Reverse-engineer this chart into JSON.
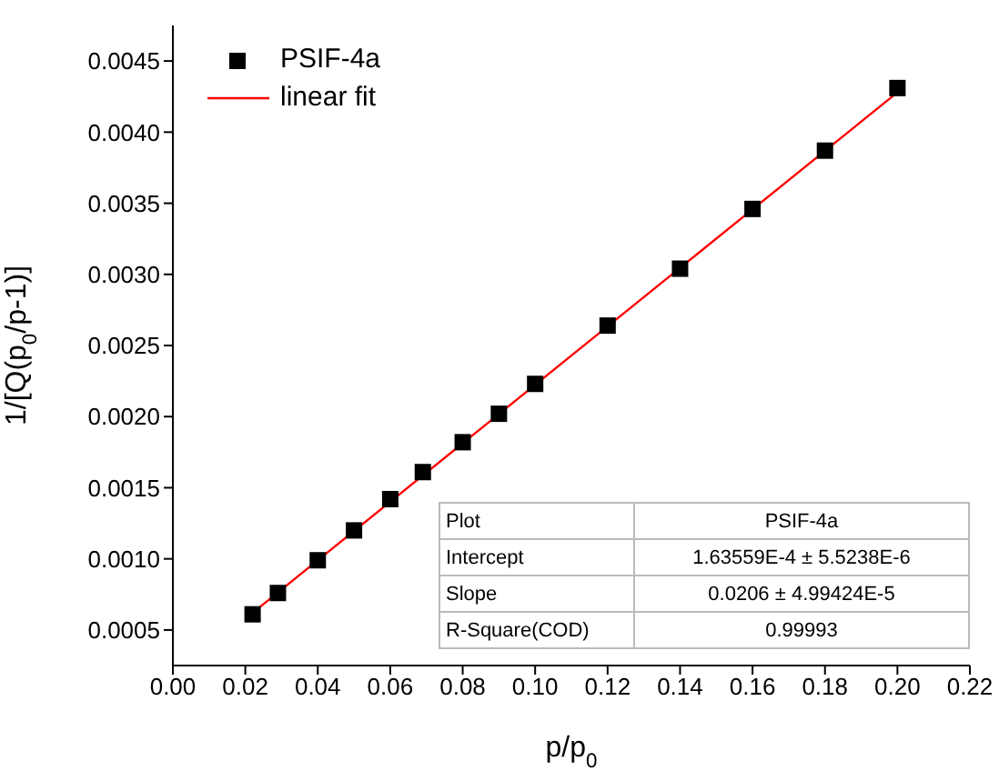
{
  "chart_data": {
    "type": "scatter",
    "xlabel": "p/p$_{0}$",
    "ylabel": "1/[Q(p$_{0}$/p-1)]",
    "xlim": [
      0,
      0.22
    ],
    "xticks": [
      {
        "value": 0,
        "label": "0.00"
      },
      0.02,
      0.04,
      0.06,
      0.08,
      {
        "value": 0.1,
        "label": "0.10"
      },
      0.12,
      0.14,
      0.16,
      0.18,
      {
        "value": 0.2,
        "label": "0.20"
      },
      0.22
    ],
    "ylim": [
      0.00025,
      0.00475
    ],
    "yticks": [
      0.0005,
      {
        "value": 0.001,
        "label": "0.0010"
      },
      0.0015,
      {
        "value": 0.002,
        "label": "0.0020"
      },
      0.0025,
      {
        "value": 0.003,
        "label": "0.0030"
      },
      0.0035,
      {
        "value": 0.004,
        "label": "0.0040"
      },
      0.0045
    ],
    "series": [
      {
        "name": "PSIF-4a",
        "color": "#000000",
        "marker": "square",
        "x": [
          0.022,
          0.029,
          0.04,
          0.05,
          0.06,
          0.069,
          0.08,
          0.09,
          0.1,
          0.12,
          0.14,
          0.16,
          0.18,
          0.2
        ],
        "values": [
          0.00061,
          0.00076,
          0.00099,
          0.0012,
          0.00142,
          0.00161,
          0.00182,
          0.00202,
          0.00223,
          0.00264,
          0.00304,
          0.00346,
          0.00387,
          0.00431
        ]
      },
      {
        "name": "linear fit",
        "type": "line",
        "color": "#ff0000",
        "marker": "none",
        "line_style": "solid",
        "x": [
          0.022,
          0.201
        ],
        "values": [
          0.00062,
          0.0043
        ]
      }
    ],
    "legend": "top left",
    "grid": false,
    "annotations": [
      "Plot",
      "PSIF-4a",
      "Intercept",
      "1.63559E-4 ± 5.5238E-6",
      "Slope",
      "0.0206 ± 4.99424E-5",
      "R-Square(COD)",
      "0.99993"
    ]
  }
}
